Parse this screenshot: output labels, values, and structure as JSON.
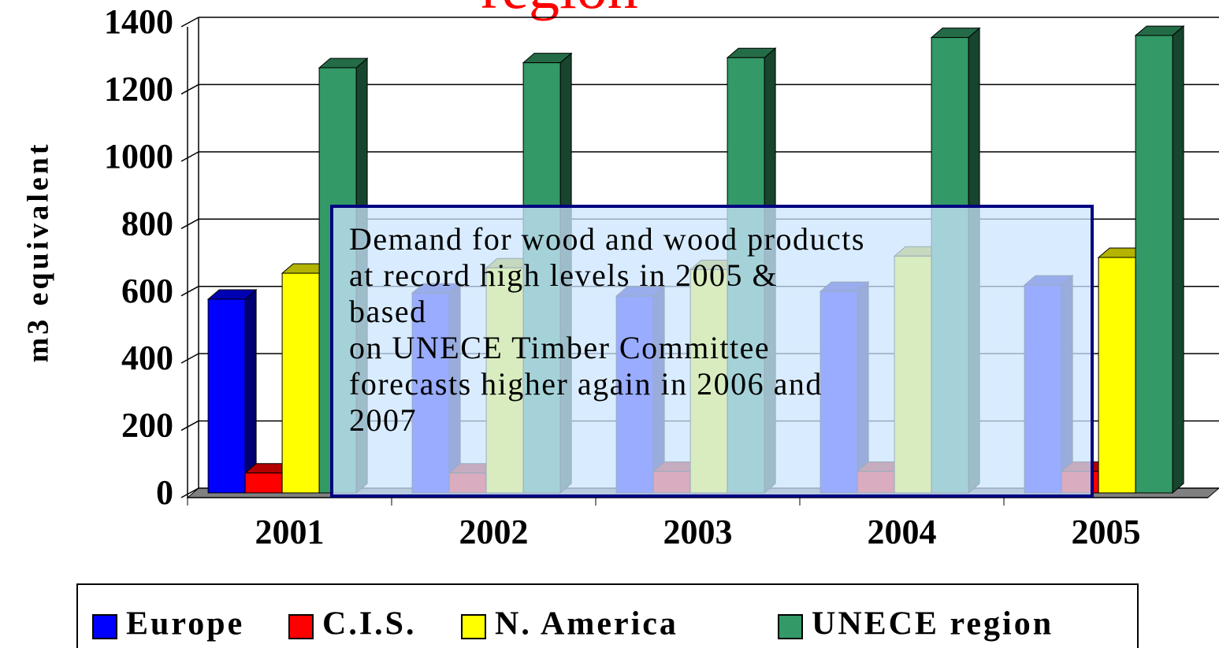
{
  "chart_data": {
    "type": "bar3d",
    "title": "region",
    "ylabel": "m3 equivalent",
    "categories": [
      "2001",
      "2002",
      "2003",
      "2004",
      "2005"
    ],
    "series": [
      {
        "name": "Europe",
        "color": "#0000ff",
        "values": [
          562,
          580,
          571,
          585,
          604
        ]
      },
      {
        "name": "C.I.S.",
        "color": "#ff0000",
        "values": [
          45,
          45,
          50,
          50,
          50
        ]
      },
      {
        "name": "N. America",
        "color": "#ffff00",
        "values": [
          639,
          655,
          650,
          690,
          686
        ]
      },
      {
        "name": "UNECE region",
        "color": "#339966",
        "values": [
          1250,
          1265,
          1280,
          1340,
          1346
        ]
      }
    ],
    "ylim": [
      0,
      1400
    ],
    "yticks": [
      0,
      200,
      400,
      600,
      800,
      1000,
      1200,
      1400
    ],
    "grid": true,
    "annotation": [
      "Demand for wood and wood products",
      "at record high levels in 2005 &",
      "based",
      "on UNECE Timber Committee",
      "forecasts higher again in 2006 and",
      "2007"
    ]
  }
}
